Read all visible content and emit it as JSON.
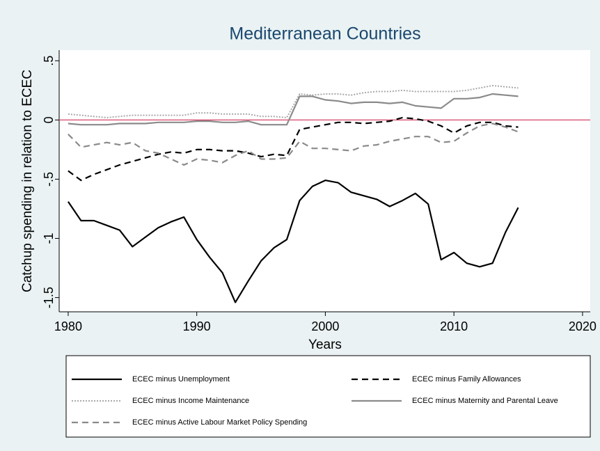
{
  "chart_data": {
    "type": "line",
    "title": "Mediterranean Countries",
    "xlabel": "Years",
    "ylabel": "Catchup spending in relation to ECEC",
    "x": [
      1980,
      1981,
      1982,
      1983,
      1984,
      1985,
      1986,
      1987,
      1988,
      1989,
      1990,
      1991,
      1992,
      1993,
      1994,
      1995,
      1996,
      1997,
      1998,
      1999,
      2000,
      2001,
      2002,
      2003,
      2004,
      2005,
      2006,
      2007,
      2008,
      2009,
      2010,
      2011,
      2012,
      2013,
      2014,
      2015
    ],
    "series": [
      {
        "name": "ECEC minus Unemployment",
        "color": "#000000",
        "style": "solid",
        "width": 2.2,
        "values": [
          -0.69,
          -0.85,
          -0.85,
          -0.89,
          -0.93,
          -1.07,
          -0.99,
          -0.91,
          -0.86,
          -0.82,
          -1.01,
          -1.16,
          -1.29,
          -1.54,
          -1.36,
          -1.19,
          -1.08,
          -1.01,
          -0.68,
          -0.56,
          -0.51,
          -0.53,
          -0.61,
          -0.64,
          -0.67,
          -0.73,
          -0.68,
          -0.62,
          -0.71,
          -1.18,
          -1.12,
          -1.21,
          -1.24,
          -1.21,
          -0.95,
          -0.74
        ]
      },
      {
        "name": "ECEC minus Family Allowances",
        "color": "#000000",
        "style": "dash",
        "width": 2.2,
        "values": [
          -0.43,
          -0.51,
          -0.46,
          -0.42,
          -0.38,
          -0.35,
          -0.32,
          -0.29,
          -0.27,
          -0.28,
          -0.25,
          -0.25,
          -0.26,
          -0.26,
          -0.28,
          -0.31,
          -0.29,
          -0.3,
          -0.08,
          -0.06,
          -0.04,
          -0.02,
          -0.02,
          -0.03,
          -0.02,
          -0.01,
          0.02,
          0.01,
          -0.01,
          -0.05,
          -0.11,
          -0.05,
          -0.02,
          -0.02,
          -0.05,
          -0.06
        ]
      },
      {
        "name": "ECEC minus Income Maintenance",
        "color": "#a8a8a8",
        "style": "dot",
        "width": 2,
        "values": [
          0.05,
          0.04,
          0.03,
          0.02,
          0.03,
          0.04,
          0.04,
          0.04,
          0.04,
          0.04,
          0.06,
          0.06,
          0.05,
          0.05,
          0.05,
          0.03,
          0.03,
          0.02,
          0.22,
          0.21,
          0.22,
          0.22,
          0.21,
          0.23,
          0.24,
          0.24,
          0.25,
          0.24,
          0.24,
          0.24,
          0.24,
          0.25,
          0.27,
          0.29,
          0.28,
          0.27
        ]
      },
      {
        "name": "ECEC minus Maternity and Parental Leave",
        "color": "#8a8a8a",
        "style": "solid",
        "width": 2.2,
        "values": [
          -0.03,
          -0.04,
          -0.04,
          -0.04,
          -0.03,
          -0.03,
          -0.03,
          -0.02,
          -0.02,
          -0.02,
          -0.01,
          -0.01,
          -0.02,
          -0.02,
          -0.01,
          -0.04,
          -0.04,
          -0.04,
          0.2,
          0.2,
          0.17,
          0.16,
          0.14,
          0.15,
          0.15,
          0.14,
          0.15,
          0.12,
          0.11,
          0.1,
          0.18,
          0.18,
          0.19,
          0.22,
          0.21,
          0.2
        ]
      },
      {
        "name": "ECEC minus Active Labour Market Policy Spending",
        "color": "#8a8a8a",
        "style": "dash",
        "width": 2.2,
        "values": [
          -0.12,
          -0.23,
          -0.21,
          -0.19,
          -0.21,
          -0.19,
          -0.26,
          -0.28,
          -0.33,
          -0.38,
          -0.33,
          -0.34,
          -0.36,
          -0.3,
          -0.26,
          -0.33,
          -0.33,
          -0.32,
          -0.18,
          -0.24,
          -0.24,
          -0.25,
          -0.26,
          -0.22,
          -0.21,
          -0.18,
          -0.16,
          -0.14,
          -0.14,
          -0.19,
          -0.18,
          -0.11,
          -0.05,
          -0.03,
          -0.06,
          -0.1
        ]
      }
    ],
    "xlim": [
      1979.3,
      2020.6
    ],
    "xticks": [
      1980,
      1990,
      2000,
      2010,
      2020
    ],
    "ylim": [
      -1.62,
      0.59
    ],
    "yticks": [
      {
        "value": 0.5,
        "label": ".5"
      },
      0,
      {
        "value": -0.5,
        "label": "-.5"
      },
      -1,
      -1.5
    ],
    "reference_line": {
      "value": 0,
      "color": "#d8436a"
    },
    "legend": "bottom",
    "grid": false
  }
}
